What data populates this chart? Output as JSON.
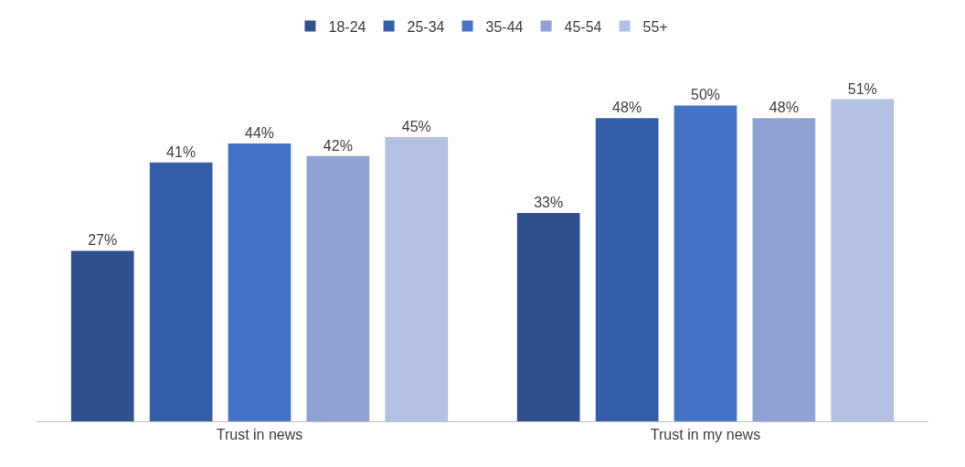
{
  "chart_data": {
    "type": "bar",
    "categories": [
      "Trust in news",
      "Trust in my news"
    ],
    "series": [
      {
        "name": "18-24",
        "color": "#2f528f",
        "values": [
          27,
          33
        ],
        "value_labels": [
          "27%",
          "33%"
        ]
      },
      {
        "name": "25-34",
        "color": "#365ea8",
        "values": [
          41,
          48
        ],
        "value_labels": [
          "41%",
          "48%"
        ]
      },
      {
        "name": "35-44",
        "color": "#4472c4",
        "values": [
          44,
          50
        ],
        "value_labels": [
          "44%",
          "50%"
        ]
      },
      {
        "name": "45-54",
        "color": "#8fa2d4",
        "values": [
          42,
          48
        ],
        "value_labels": [
          "42%",
          "48%"
        ]
      },
      {
        "name": "55+",
        "color": "#b4c0e4",
        "values": [
          45,
          51
        ],
        "value_labels": [
          "45%",
          "51%"
        ]
      }
    ],
    "legend": "top",
    "grid": false
  }
}
